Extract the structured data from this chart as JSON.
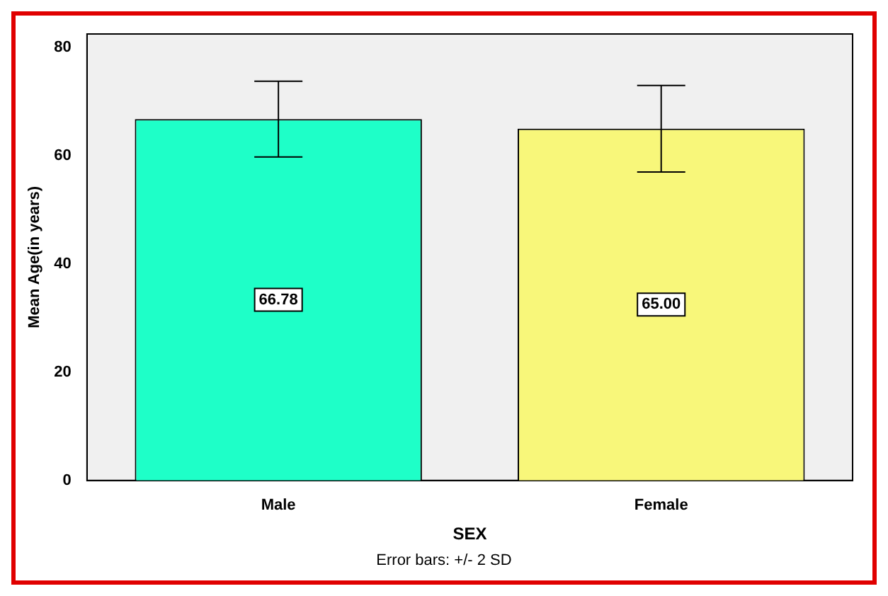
{
  "chart_data": {
    "type": "bar",
    "categories": [
      "Male",
      "Female"
    ],
    "values": [
      66.78,
      65.0
    ],
    "colors": [
      "#1effc8",
      "#f8f77a"
    ],
    "errors": [
      7,
      8
    ],
    "value_labels": [
      "66.78",
      "65.00"
    ],
    "xlabel": "SEX",
    "ylabel": "Mean Age(in years)",
    "ylim": [
      0,
      82.5
    ],
    "yticks": [
      0,
      20,
      40,
      60,
      80
    ],
    "grid": false,
    "legend": false,
    "annotations": [
      "Error bars: +/- 2 SD"
    ]
  }
}
